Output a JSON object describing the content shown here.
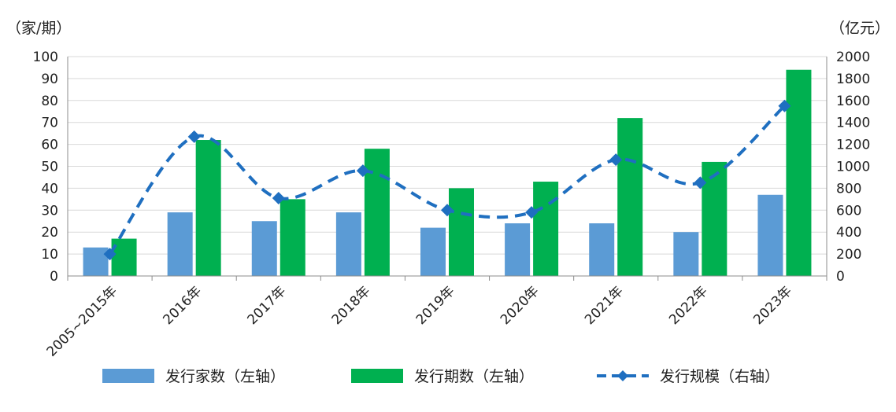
{
  "chart_data": {
    "type": "bar",
    "units": {
      "left": "（家/期）",
      "right": "（亿元）"
    },
    "categories": [
      "2005~2015年",
      "2016年",
      "2017年",
      "2018年",
      "2019年",
      "2020年",
      "2021年",
      "2022年",
      "2023年"
    ],
    "series": [
      {
        "name": "发行家数（左轴）",
        "type": "bar",
        "axis": "left",
        "color": "#5b9bd5",
        "values": [
          13,
          29,
          25,
          29,
          22,
          24,
          24,
          20,
          37
        ]
      },
      {
        "name": "发行期数（左轴）",
        "type": "bar",
        "axis": "left",
        "color": "#00b050",
        "values": [
          17,
          62,
          35,
          58,
          40,
          43,
          72,
          52,
          94
        ]
      },
      {
        "name": "发行规模（右轴）",
        "type": "line",
        "axis": "right",
        "color": "#1f6fc0",
        "dashed": true,
        "marker": "diamond",
        "values": [
          200,
          1270,
          710,
          960,
          600,
          580,
          1060,
          850,
          1550
        ]
      }
    ],
    "yLeft": {
      "min": 0,
      "max": 100,
      "step": 10
    },
    "yRight": {
      "min": 0,
      "max": 2000,
      "step": 200
    },
    "grid": true,
    "legend": "bottom"
  }
}
